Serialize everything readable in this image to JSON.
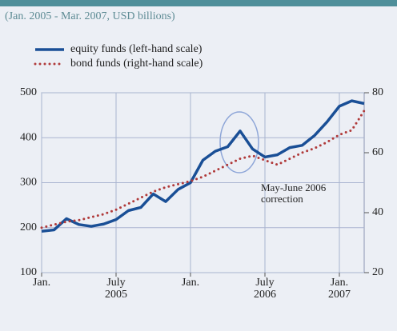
{
  "chart_data": {
    "type": "line",
    "subtitle": "(Jan. 2005 - Mar. 2007, USD billions)",
    "categories": [
      "Jan.",
      null,
      null,
      null,
      null,
      null,
      "July 2005",
      null,
      null,
      null,
      null,
      null,
      "Jan.",
      null,
      null,
      null,
      null,
      null,
      "July 2006",
      null,
      null,
      null,
      null,
      null,
      "Jan. 2007",
      null,
      null
    ],
    "series": [
      {
        "name": "equity funds (left-hand scale)",
        "color": "#1a4f96",
        "values": [
          192,
          195,
          220,
          207,
          203,
          208,
          218,
          238,
          245,
          275,
          258,
          285,
          300,
          350,
          370,
          380,
          415,
          375,
          357,
          362,
          378,
          383,
          405,
          435,
          470,
          482,
          476
        ]
      },
      {
        "name": "bond funds (right-hand scale)",
        "color": "#b03a3a",
        "axis": "y2",
        "values": [
          35,
          36,
          37,
          37.5,
          38.5,
          39.5,
          41,
          43,
          45,
          47,
          48.5,
          49.5,
          50.5,
          52,
          54,
          56,
          58,
          59,
          57.5,
          56,
          58,
          60,
          61.5,
          63.5,
          66,
          67.5,
          74
        ]
      }
    ],
    "ylim": [
      100,
      500
    ],
    "yticks": [
      100,
      200,
      300,
      400,
      500
    ],
    "y2lim": [
      20,
      80
    ],
    "y2ticks": [
      20,
      40,
      60,
      80
    ],
    "grid": true,
    "annotation": [
      "May-June 2006",
      "correction"
    ]
  }
}
